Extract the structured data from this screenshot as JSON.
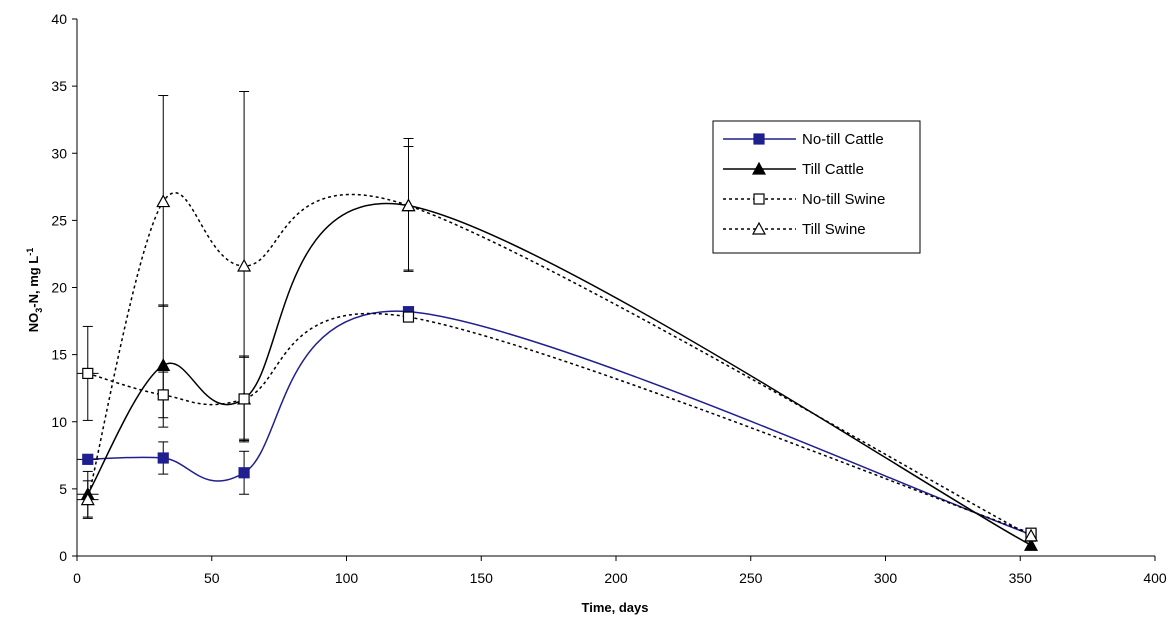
{
  "chart_data": {
    "type": "line",
    "title": "",
    "xlabel": "Time, days",
    "ylabel_main": "NO",
    "ylabel_sub": "3",
    "ylabel_rest": "-N, mg L",
    "ylabel_sup": "-1",
    "xlim": [
      0,
      400
    ],
    "ylim": [
      0,
      40
    ],
    "xticks": [
      "0",
      "50",
      "100",
      "150",
      "200",
      "250",
      "300",
      "350",
      "400"
    ],
    "yticks": [
      "0",
      "5",
      "10",
      "15",
      "20",
      "25",
      "30",
      "35",
      "40"
    ],
    "grid": false,
    "legend_position": "right",
    "x": [
      4,
      32,
      62,
      123,
      354
    ],
    "series": [
      {
        "name": "No-till Cattle",
        "values": [
          7.2,
          7.3,
          6.2,
          18.2,
          1.6
        ],
        "err_low": [
          6.9,
          6.1,
          4.6,
          18.2,
          1.6
        ],
        "err_high": [
          7.4,
          8.5,
          7.8,
          18.2,
          1.6
        ],
        "color": "#1f1f8f",
        "marker": "square-filled",
        "dash": "solid"
      },
      {
        "name": "Till Cattle",
        "values": [
          4.6,
          14.2,
          11.7,
          26.1,
          0.8
        ],
        "err_low": [
          2.9,
          9.6,
          8.7,
          21.2,
          0.5
        ],
        "err_high": [
          6.3,
          18.7,
          14.8,
          30.5,
          1.1
        ],
        "color": "#000000",
        "marker": "triangle-filled",
        "dash": "solid"
      },
      {
        "name": "No-till Swine",
        "values": [
          13.6,
          12.0,
          11.7,
          17.8,
          1.7
        ],
        "err_low": [
          10.1,
          10.3,
          8.6,
          17.8,
          1.4
        ],
        "err_high": [
          17.1,
          13.7,
          14.9,
          17.8,
          2.0
        ],
        "color": "#000000",
        "marker": "square-open",
        "dash": "dotted"
      },
      {
        "name": "Till Swine",
        "values": [
          4.2,
          26.4,
          21.6,
          26.1,
          1.5
        ],
        "err_low": [
          2.8,
          18.6,
          8.5,
          21.3,
          1.2
        ],
        "err_high": [
          5.6,
          34.3,
          34.6,
          31.1,
          1.8
        ],
        "color": "#000000",
        "marker": "triangle-open",
        "dash": "dotted"
      }
    ]
  }
}
